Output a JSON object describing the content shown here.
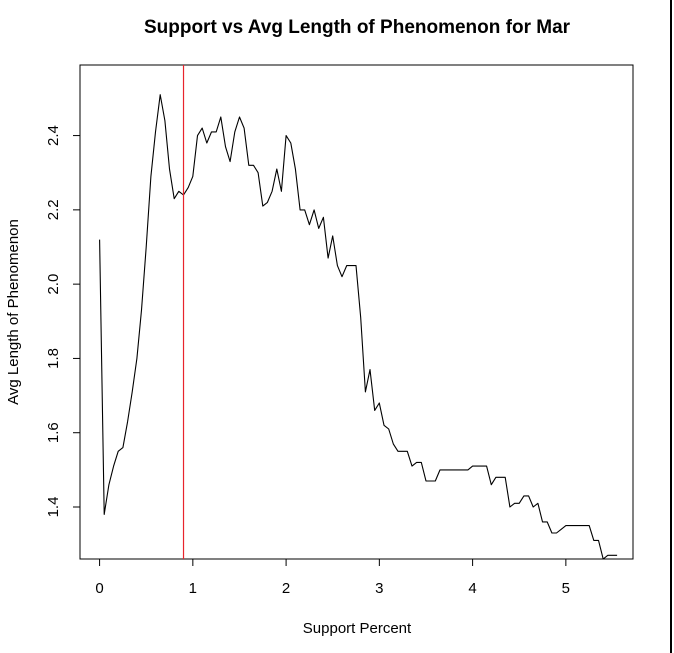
{
  "chart_data": {
    "type": "line",
    "title": "Support vs Avg Length of Phenomenon for Mar",
    "xlabel": "Support Percent",
    "ylabel": "Avg Length of Phenomenon",
    "xlim": [
      -0.21,
      5.72
    ],
    "ylim": [
      1.26,
      2.59
    ],
    "x_ticks": [
      0,
      1,
      2,
      3,
      4,
      5
    ],
    "y_ticks": [
      1.4,
      1.6,
      1.8,
      2.0,
      2.2,
      2.4
    ],
    "x_tick_labels": [
      "0",
      "1",
      "2",
      "3",
      "4",
      "5"
    ],
    "y_tick_labels": [
      "1.4",
      "1.6",
      "1.8",
      "2.0",
      "2.2",
      "2.4"
    ],
    "vline": {
      "x": 0.9,
      "color": "#e8242c"
    },
    "line_color": "#000000",
    "grid": false,
    "series": [
      {
        "x": [
          0.0,
          0.05,
          0.1,
          0.15,
          0.2,
          0.25,
          0.3,
          0.35,
          0.4,
          0.45,
          0.5,
          0.55,
          0.6,
          0.65,
          0.7,
          0.75,
          0.8,
          0.85,
          0.9,
          0.95,
          1.0,
          1.05,
          1.1,
          1.15,
          1.2,
          1.25,
          1.3,
          1.35,
          1.4,
          1.45,
          1.5,
          1.55,
          1.6,
          1.65,
          1.7,
          1.75,
          1.8,
          1.85,
          1.9,
          1.95,
          2.0,
          2.05,
          2.1,
          2.15,
          2.2,
          2.25,
          2.3,
          2.35,
          2.4,
          2.45,
          2.5,
          2.55,
          2.6,
          2.65,
          2.7,
          2.75,
          2.8,
          2.85,
          2.9,
          2.95,
          3.0,
          3.05,
          3.1,
          3.15,
          3.2,
          3.25,
          3.3,
          3.35,
          3.4,
          3.45,
          3.5,
          3.55,
          3.6,
          3.65,
          3.7,
          3.75,
          3.8,
          3.85,
          3.9,
          3.95,
          4.0,
          4.05,
          4.1,
          4.15,
          4.2,
          4.25,
          4.3,
          4.35,
          4.4,
          4.45,
          4.5,
          4.55,
          4.6,
          4.65,
          4.7,
          4.75,
          4.8,
          4.85,
          4.9,
          4.95,
          5.0,
          5.05,
          5.1,
          5.15,
          5.2,
          5.25,
          5.3,
          5.35,
          5.4,
          5.45,
          5.5,
          5.55
        ],
        "values": [
          2.12,
          1.38,
          1.46,
          1.51,
          1.55,
          1.56,
          1.63,
          1.71,
          1.8,
          1.93,
          2.1,
          2.29,
          2.41,
          2.51,
          2.44,
          2.31,
          2.23,
          2.25,
          2.24,
          2.26,
          2.29,
          2.4,
          2.42,
          2.38,
          2.41,
          2.41,
          2.45,
          2.37,
          2.33,
          2.41,
          2.45,
          2.42,
          2.32,
          2.32,
          2.3,
          2.21,
          2.22,
          2.25,
          2.31,
          2.25,
          2.4,
          2.38,
          2.31,
          2.2,
          2.2,
          2.16,
          2.2,
          2.15,
          2.18,
          2.07,
          2.13,
          2.05,
          2.02,
          2.05,
          2.05,
          2.05,
          1.91,
          1.71,
          1.77,
          1.66,
          1.68,
          1.62,
          1.61,
          1.57,
          1.55,
          1.55,
          1.55,
          1.51,
          1.52,
          1.52,
          1.47,
          1.47,
          1.47,
          1.5,
          1.5,
          1.5,
          1.5,
          1.5,
          1.5,
          1.5,
          1.51,
          1.51,
          1.51,
          1.51,
          1.46,
          1.48,
          1.48,
          1.48,
          1.4,
          1.41,
          1.41,
          1.43,
          1.43,
          1.4,
          1.41,
          1.36,
          1.36,
          1.33,
          1.33,
          1.34,
          1.35,
          1.35,
          1.35,
          1.35,
          1.35,
          1.35,
          1.31,
          1.31,
          1.26,
          1.27,
          1.27,
          1.27
        ]
      }
    ]
  }
}
